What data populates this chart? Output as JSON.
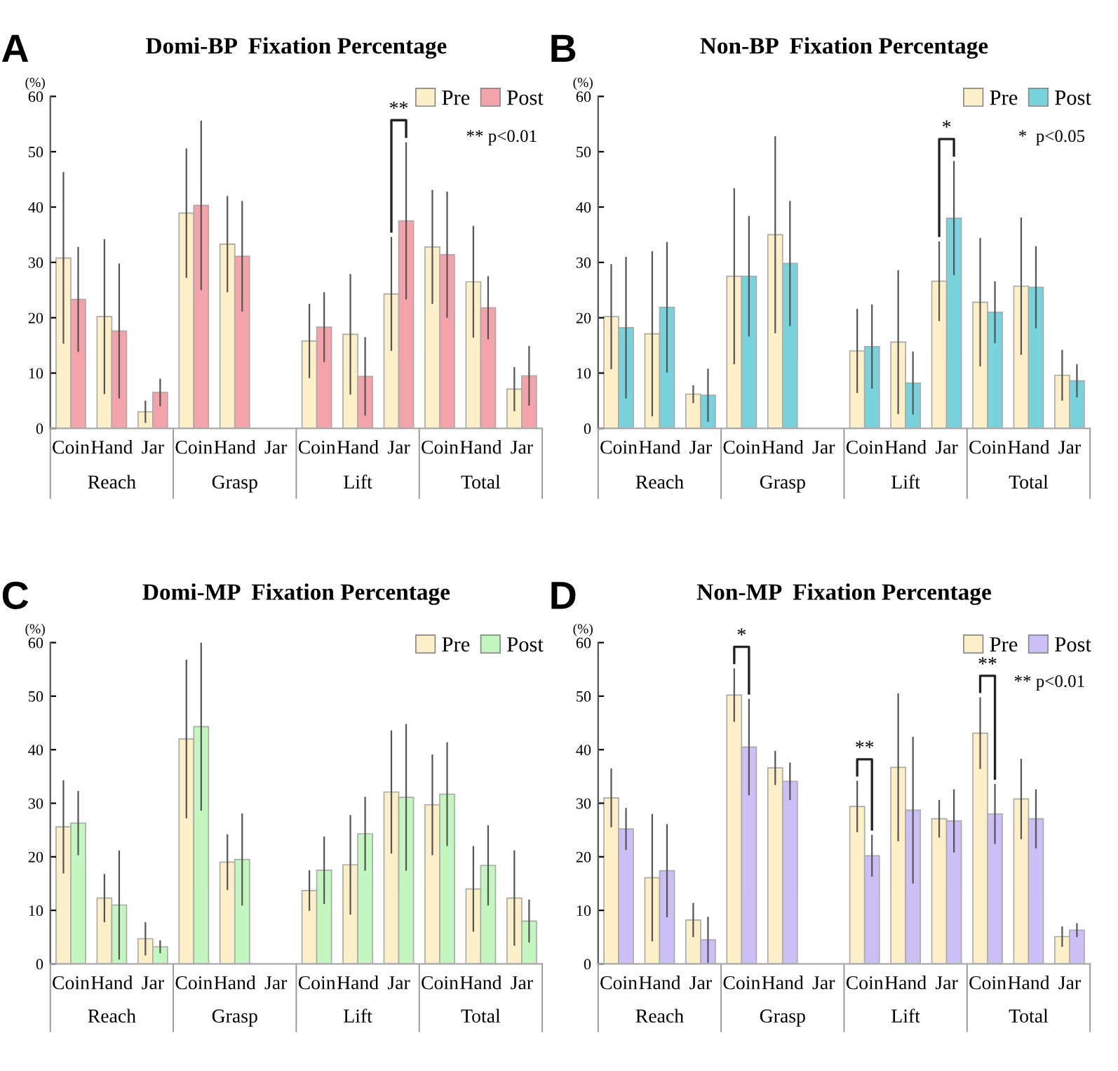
{
  "chart_data": [
    {
      "type": "bar",
      "title": "Domi-BP  Fixation Percentage",
      "ylabel": "(%)",
      "categories": [
        "Coin",
        "Hand",
        "Jar",
        "Coin",
        "Hand",
        "Jar",
        "Coin",
        "Hand",
        "Jar",
        "Coin",
        "Hand",
        "Jar"
      ],
      "series": [
        {
          "name": "Pre",
          "color": "#fdf0c8",
          "values": [
            30.8,
            20.2,
            3.0,
            38.9,
            33.3,
            null,
            15.8,
            17.0,
            24.3,
            32.8,
            26.5,
            7.1
          ],
          "errors": [
            15.5,
            14,
            2,
            11.7,
            8.7,
            null,
            6.7,
            10.9,
            10.3,
            10.3,
            10.1,
            4
          ]
        },
        {
          "name": "Post",
          "color": "#f4a3ab",
          "values": [
            23.3,
            17.6,
            6.5,
            40.3,
            31.1,
            null,
            18.3,
            9.4,
            37.5,
            31.4,
            21.8,
            9.5
          ],
          "errors": [
            9.5,
            12.2,
            2.5,
            15.3,
            10,
            null,
            6.3,
            7.1,
            14.2,
            11.4,
            5.7,
            5.4
          ]
        }
      ],
      "ylim": [
        0,
        60
      ],
      "yticks": [
        0,
        10,
        20,
        30,
        40,
        50,
        60
      ],
      "legend": "top right",
      "grid": false,
      "annotations": [
        "A",
        "Reach",
        "Grasp",
        "Lift",
        "Total",
        "** p<0.01",
        "**"
      ]
    },
    {
      "type": "bar",
      "title": "Non-BP  Fixation Percentage",
      "ylabel": "(%)",
      "categories": [
        "Coin",
        "Hand",
        "Jar",
        "Coin",
        "Hand",
        "Jar",
        "Coin",
        "Hand",
        "Jar",
        "Coin",
        "Hand",
        "Jar"
      ],
      "series": [
        {
          "name": "Pre",
          "color": "#fdf0c8",
          "values": [
            20.2,
            17.1,
            6.2,
            27.5,
            35.0,
            null,
            14.0,
            15.6,
            26.6,
            22.8,
            25.7,
            9.6
          ],
          "errors": [
            9.5,
            14.9,
            1.6,
            15.9,
            17.8,
            null,
            7.6,
            13,
            7.2,
            11.6,
            12.4,
            4.6
          ]
        },
        {
          "name": "Post",
          "color": "#78d3dc",
          "values": [
            18.2,
            21.9,
            6.0,
            27.5,
            29.8,
            null,
            14.8,
            8.2,
            38.0,
            21.0,
            25.5,
            8.6
          ],
          "errors": [
            12.8,
            11.8,
            4.8,
            10.9,
            11.3,
            null,
            7.6,
            5.7,
            10.3,
            5.6,
            7.4,
            3
          ]
        }
      ],
      "ylim": [
        0,
        60
      ],
      "yticks": [
        0,
        10,
        20,
        30,
        40,
        50,
        60
      ],
      "legend": "top right",
      "grid": false,
      "annotations": [
        "B",
        "Reach",
        "Grasp",
        "Lift",
        "Total",
        "*  p<0.05",
        "*"
      ]
    },
    {
      "type": "bar",
      "title": "Domi-MP  Fixation Percentage",
      "ylabel": "(%)",
      "categories": [
        "Coin",
        "Hand",
        "Jar",
        "Coin",
        "Hand",
        "Jar",
        "Coin",
        "Hand",
        "Jar",
        "Coin",
        "Hand",
        "Jar"
      ],
      "series": [
        {
          "name": "Pre",
          "color": "#fdf0c8",
          "values": [
            25.6,
            12.3,
            4.7,
            42.0,
            19.0,
            null,
            13.7,
            18.5,
            32.1,
            29.7,
            14.0,
            12.3
          ],
          "errors": [
            8.7,
            4.5,
            3.1,
            14.8,
            5.2,
            null,
            3.8,
            9.3,
            11.5,
            9.4,
            8,
            8.9
          ]
        },
        {
          "name": "Post",
          "color": "#c4f7c0",
          "values": [
            26.3,
            11.0,
            3.2,
            44.3,
            19.5,
            null,
            17.5,
            24.3,
            31.1,
            31.7,
            18.4,
            8.0
          ],
          "errors": [
            6,
            10.2,
            1.2,
            15.7,
            8.6,
            null,
            6.3,
            6.9,
            13.7,
            9.7,
            7.5,
            4
          ]
        }
      ],
      "ylim": [
        0,
        60
      ],
      "yticks": [
        0,
        10,
        20,
        30,
        40,
        50,
        60
      ],
      "legend": "top right",
      "grid": false,
      "annotations": [
        "C",
        "Reach",
        "Grasp",
        "Lift",
        "Total"
      ]
    },
    {
      "type": "bar",
      "title": "Non-MP  Fixation Percentage",
      "ylabel": "(%)",
      "categories": [
        "Coin",
        "Hand",
        "Jar",
        "Coin",
        "Hand",
        "Jar",
        "Coin",
        "Hand",
        "Jar",
        "Coin",
        "Hand",
        "Jar"
      ],
      "series": [
        {
          "name": "Pre",
          "color": "#fdf0c8",
          "values": [
            31.0,
            16.1,
            8.2,
            50.2,
            36.6,
            null,
            29.4,
            36.7,
            27.1,
            43.1,
            30.8,
            5.1
          ],
          "errors": [
            5.5,
            11.9,
            3.2,
            5,
            3.2,
            null,
            4.8,
            13.8,
            3.5,
            6.7,
            7.5,
            1.9
          ]
        },
        {
          "name": "Post",
          "color": "#cbbff5",
          "values": [
            25.2,
            17.4,
            4.5,
            40.5,
            34.1,
            null,
            20.2,
            28.7,
            26.7,
            28.0,
            27.1,
            6.3
          ],
          "errors": [
            3.9,
            8.7,
            4.3,
            9,
            3.5,
            null,
            3.9,
            13.7,
            5.9,
            5.6,
            5.5,
            1.3
          ]
        }
      ],
      "ylim": [
        0,
        60
      ],
      "yticks": [
        0,
        10,
        20,
        30,
        40,
        50,
        60
      ],
      "legend": "top right",
      "grid": false,
      "annotations": [
        "D",
        "Reach",
        "Grasp",
        "Lift",
        "Total",
        "** p<0.01",
        "*",
        "**",
        "**"
      ]
    }
  ]
}
